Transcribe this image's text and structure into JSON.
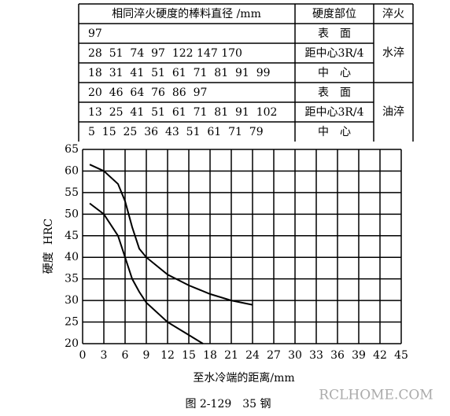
{
  "table": {
    "header": [
      "相同淬火硬度的棒料直径 /mm",
      "硬度部位",
      "淬火"
    ],
    "groups": [
      {
        "quench": "水淬",
        "rows": [
          {
            "diameters": "97",
            "position": "表　面"
          },
          {
            "diameters": "28  51  74  97  122 147 170",
            "position": "距中心3R/4"
          },
          {
            "diameters": "18  31  41  51  61  71  81  91  99",
            "position": "中　心"
          }
        ]
      },
      {
        "quench": "油淬",
        "rows": [
          {
            "diameters": "20  46  64  76  86  97",
            "position": "表　面"
          },
          {
            "diameters": "13  25  41  51  61  71  81  91  102",
            "position": "距中心3R/4"
          },
          {
            "diameters": "5  15  25  36  43  51  61  71  79",
            "position": "中　心"
          }
        ]
      }
    ]
  },
  "chart_data": {
    "type": "line",
    "y_label": "硬度  HRC",
    "x_label": "至水冷端的距离/mm",
    "caption": "图 2-129　35 钢",
    "watermark": "RCLHOME.COM",
    "xlim": [
      0,
      45
    ],
    "ylim": [
      20,
      65
    ],
    "xticks": [
      0,
      3,
      6,
      9,
      12,
      15,
      18,
      21,
      24,
      27,
      30,
      33,
      36,
      39,
      42,
      45
    ],
    "yticks": [
      20,
      25,
      30,
      35,
      40,
      45,
      50,
      55,
      60,
      65
    ],
    "grid": true,
    "series": [
      {
        "color": "#000000",
        "x": [
          1,
          3,
          5,
          6,
          7,
          8,
          9,
          12,
          15,
          18,
          21,
          24
        ],
        "values": [
          61.5,
          60,
          57,
          53,
          47,
          42,
          40,
          36,
          33.5,
          31.5,
          30,
          29
        ]
      },
      {
        "color": "#000000",
        "x": [
          1,
          3,
          5,
          6,
          7,
          8,
          9,
          12,
          15,
          17
        ],
        "values": [
          52.5,
          50,
          45,
          40,
          35,
          32,
          29.5,
          25,
          22,
          20
        ]
      }
    ]
  }
}
